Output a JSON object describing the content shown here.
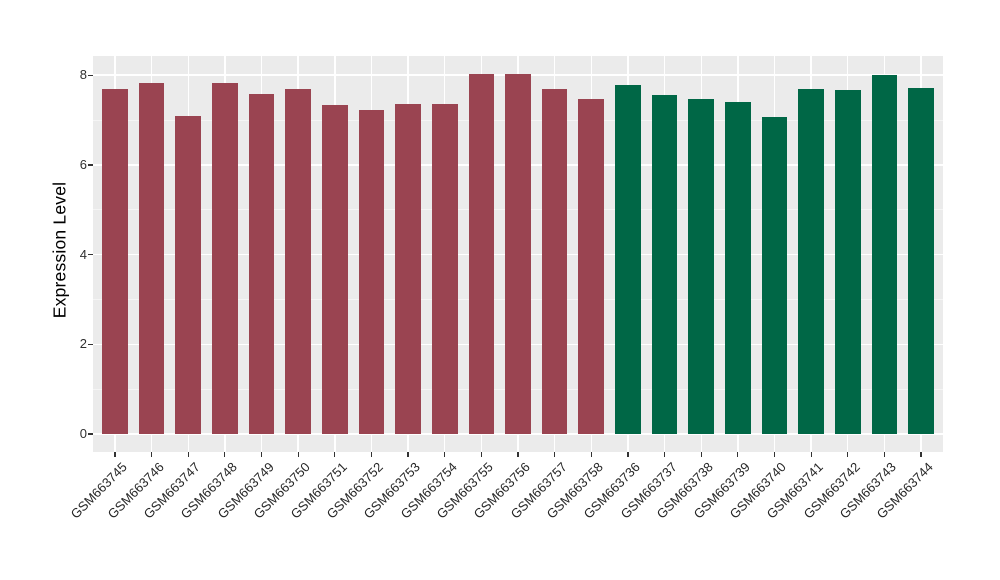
{
  "chart_data": {
    "type": "bar",
    "title": "",
    "xlabel": "",
    "ylabel": "Expression Level",
    "ylim": [
      -0.4,
      8.43
    ],
    "yticks": [
      0,
      2,
      4,
      6,
      8
    ],
    "minor_gridlines": [
      1,
      3,
      5,
      7
    ],
    "grid": "on",
    "legend_position": "none",
    "categories": [
      "GSM663745",
      "GSM663746",
      "GSM663747",
      "GSM663748",
      "GSM663749",
      "GSM663750",
      "GSM663751",
      "GSM663752",
      "GSM663753",
      "GSM663754",
      "GSM663755",
      "GSM663756",
      "GSM663757",
      "GSM663758",
      "GSM663736",
      "GSM663737",
      "GSM663738",
      "GSM663739",
      "GSM663740",
      "GSM663741",
      "GSM663742",
      "GSM663743",
      "GSM663744"
    ],
    "values": [
      7.7,
      7.83,
      7.1,
      7.83,
      7.59,
      7.69,
      7.33,
      7.23,
      7.35,
      7.36,
      8.02,
      8.03,
      7.7,
      7.47,
      7.79,
      7.56,
      7.48,
      7.41,
      7.06,
      7.69,
      7.68,
      8.01,
      7.71
    ],
    "groups": [
      "A",
      "A",
      "A",
      "A",
      "A",
      "A",
      "A",
      "A",
      "A",
      "A",
      "A",
      "A",
      "A",
      "A",
      "B",
      "B",
      "B",
      "B",
      "B",
      "B",
      "B",
      "B",
      "B"
    ],
    "group_colors": {
      "A": "#9A4451",
      "B": "#006746"
    },
    "panel_background": "#EBEBEB",
    "major_gridline_color": "#FFFFFF",
    "minor_gridline_color": "#F5F5F5",
    "tick_color": "#333333",
    "axis_text_color": "#303030"
  }
}
